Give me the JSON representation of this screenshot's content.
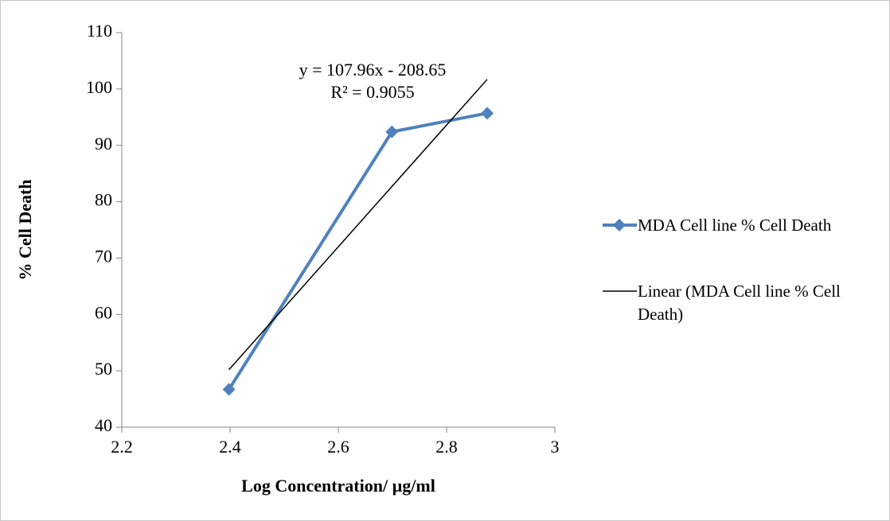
{
  "chart_data": {
    "type": "line",
    "x_label": "Log Concentration/ µg/ml",
    "y_label": "% Cell Death",
    "annotations": [
      "y = 107.96x - 208.65",
      "R² = 0.9055"
    ],
    "series": [
      {
        "name": "MDA Cell line % Cell Death",
        "color": "#4f81bd",
        "marker": "diamond",
        "x": [
          2.398,
          2.699,
          2.875
        ],
        "values": [
          46.7,
          92.4,
          95.7
        ]
      },
      {
        "name": "Linear (MDA Cell line % Cell Death)",
        "color": "#000000",
        "x": [
          2.398,
          2.875
        ],
        "values": [
          50.2,
          101.7
        ]
      }
    ],
    "xlim": [
      2.2,
      3
    ],
    "xticks": [
      2.2,
      2.4,
      2.6,
      2.8,
      3
    ],
    "ylim": [
      40,
      110
    ],
    "yticks": [
      40,
      50,
      60,
      70,
      80,
      90,
      100,
      110
    ],
    "grid": false,
    "legend": "right"
  }
}
